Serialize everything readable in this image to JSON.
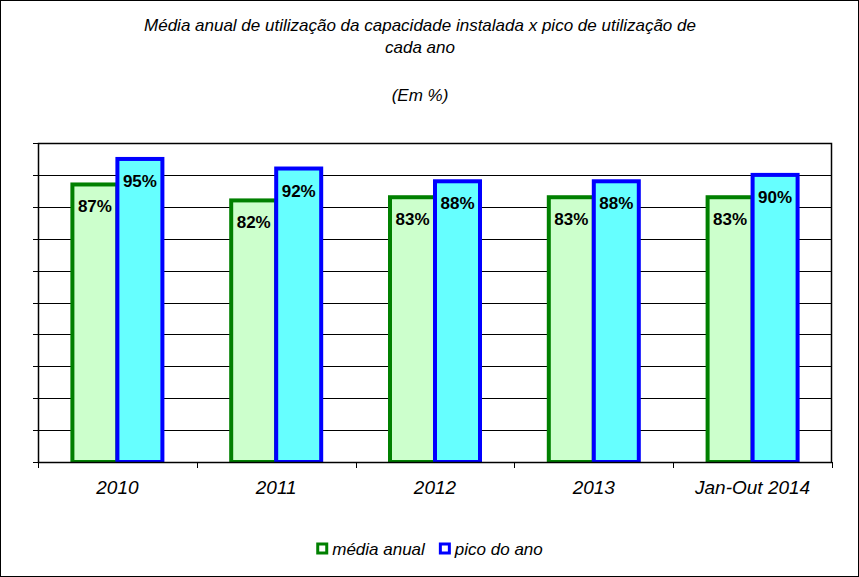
{
  "chart_data": {
    "type": "bar",
    "title": "Média anual de utilização da capacidade instalada x pico de utilização de cada ano",
    "subtitle": "(Em %)",
    "categories": [
      "2010",
      "2011",
      "2012",
      "2013",
      "Jan-Out 2014"
    ],
    "series": [
      {
        "name": "média anual",
        "color": "#008000",
        "values": [
          87,
          82,
          83,
          83,
          83
        ],
        "value_labels": [
          "87%",
          "82%",
          "83%",
          "83%",
          "83%"
        ]
      },
      {
        "name": "pico do ano",
        "color": "#0000ff",
        "values": [
          95,
          92,
          88,
          88,
          90
        ],
        "value_labels": [
          "95%",
          "92%",
          "88%",
          "88%",
          "90%"
        ]
      }
    ],
    "ylim": [
      0,
      100
    ],
    "yticks": [
      0,
      10,
      20,
      30,
      40,
      50,
      60,
      70,
      80,
      90,
      100
    ],
    "grid": true,
    "tick_labels": "x",
    "data_labels": true,
    "legend": "bottom"
  }
}
